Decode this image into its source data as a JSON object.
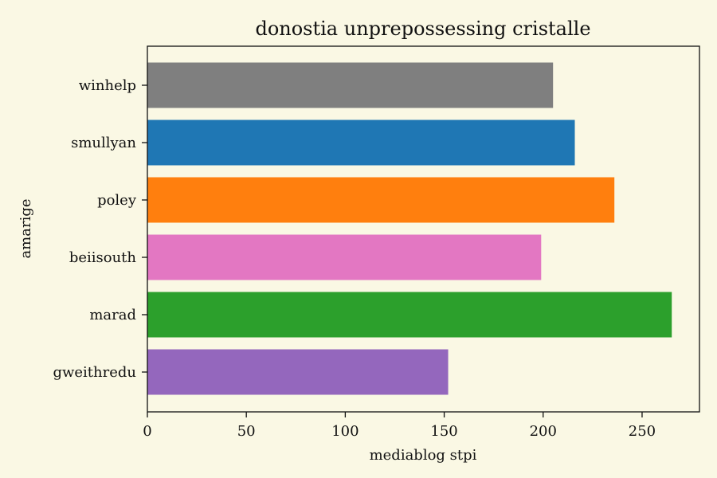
{
  "chart_data": {
    "type": "bar",
    "orientation": "horizontal",
    "title": "donostia unprepossessing cristalle",
    "xlabel": "mediablog stpi",
    "ylabel": "amarige",
    "categories": [
      "winhelp",
      "smullyan",
      "poley",
      "beiisouth",
      "marad",
      "gweithredu"
    ],
    "values": [
      205,
      216,
      236,
      199,
      265,
      152
    ],
    "colors": [
      "#7f7f7f",
      "#1f77b4",
      "#ff7f0e",
      "#e377c2",
      "#2ca02c",
      "#9467bd"
    ],
    "xlim": [
      0,
      279
    ],
    "xticks": [
      0,
      50,
      100,
      150,
      200,
      250
    ],
    "xtick_labels": [
      "0",
      "50",
      "100",
      "150",
      "200",
      "250"
    ],
    "grid": false,
    "background": "#faf8e4"
  }
}
